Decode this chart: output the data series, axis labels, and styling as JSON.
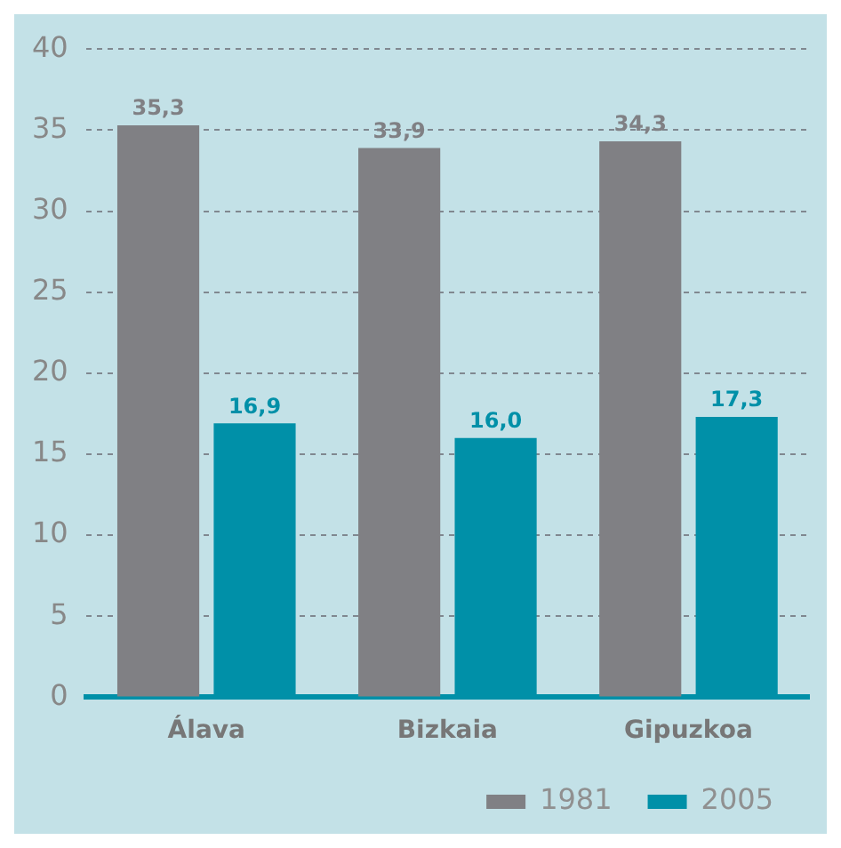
{
  "chart_data": {
    "type": "bar",
    "categories": [
      "Álava",
      "Bizkaia",
      "Gipuzkoa"
    ],
    "series": [
      {
        "name": "1981",
        "color": "#808084",
        "values": [
          35.3,
          33.9,
          34.3
        ],
        "value_labels": [
          "35,3",
          "33,9",
          "34,3"
        ]
      },
      {
        "name": "2005",
        "color": "#0090a8",
        "values": [
          16.9,
          16.0,
          17.3
        ],
        "value_labels": [
          "16,9",
          "16,0",
          "17,3"
        ]
      }
    ],
    "ylim": [
      0,
      40
    ],
    "yticks": [
      0,
      5,
      10,
      15,
      20,
      25,
      30,
      35,
      40
    ],
    "grid": "y",
    "legend": "bottom right"
  }
}
